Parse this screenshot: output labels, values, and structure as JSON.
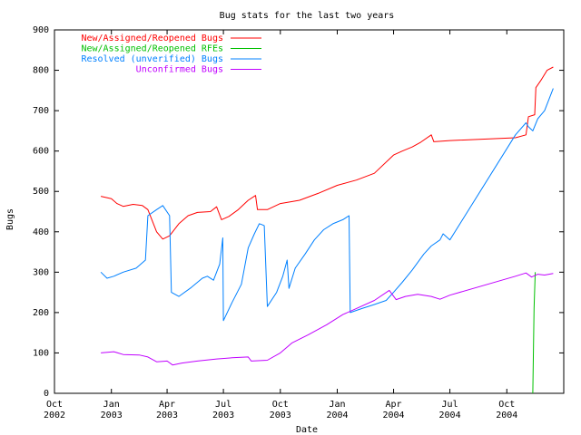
{
  "chart_data": {
    "type": "line",
    "title": "Bug stats for the last two years",
    "xlabel": "Date",
    "ylabel": "Bugs",
    "ylim": [
      0,
      900
    ],
    "xlim": [
      "2002-10-01",
      "2005-01-01"
    ],
    "grid": false,
    "legend_position": "top-left",
    "x_ticks": [
      {
        "date": "2002-10-01",
        "line1": "Oct",
        "line2": "2002"
      },
      {
        "date": "2003-01-01",
        "line1": "Jan",
        "line2": "2003"
      },
      {
        "date": "2003-04-01",
        "line1": "Apr",
        "line2": "2003"
      },
      {
        "date": "2003-07-01",
        "line1": "Jul",
        "line2": "2003"
      },
      {
        "date": "2003-10-01",
        "line1": "Oct",
        "line2": "2003"
      },
      {
        "date": "2004-01-01",
        "line1": "Jan",
        "line2": "2004"
      },
      {
        "date": "2004-04-01",
        "line1": "Apr",
        "line2": "2004"
      },
      {
        "date": "2004-07-01",
        "line1": "Jul",
        "line2": "2004"
      },
      {
        "date": "2004-10-01",
        "line1": "Oct",
        "line2": "2004"
      }
    ],
    "y_ticks": [
      0,
      100,
      200,
      300,
      400,
      500,
      600,
      700,
      800,
      900
    ],
    "series": [
      {
        "name": "New/Assigned/Reopened Bugs",
        "color": "#ff0000",
        "points": [
          [
            "2002-12-15",
            488
          ],
          [
            "2003-01-01",
            482
          ],
          [
            "2003-01-10",
            470
          ],
          [
            "2003-01-20",
            463
          ],
          [
            "2003-02-05",
            468
          ],
          [
            "2003-02-20",
            465
          ],
          [
            "2003-03-01",
            455
          ],
          [
            "2003-03-15",
            400
          ],
          [
            "2003-03-25",
            382
          ],
          [
            "2003-04-05",
            390
          ],
          [
            "2003-04-20",
            420
          ],
          [
            "2003-05-05",
            440
          ],
          [
            "2003-05-20",
            448
          ],
          [
            "2003-06-10",
            450
          ],
          [
            "2003-06-20",
            462
          ],
          [
            "2003-06-28",
            430
          ],
          [
            "2003-07-10",
            438
          ],
          [
            "2003-07-25",
            455
          ],
          [
            "2003-08-10",
            478
          ],
          [
            "2003-08-22",
            490
          ],
          [
            "2003-08-25",
            455
          ],
          [
            "2003-09-10",
            455
          ],
          [
            "2003-10-01",
            470
          ],
          [
            "2003-11-01",
            478
          ],
          [
            "2003-12-01",
            495
          ],
          [
            "2004-01-01",
            515
          ],
          [
            "2004-02-01",
            528
          ],
          [
            "2004-03-01",
            545
          ],
          [
            "2004-04-01",
            590
          ],
          [
            "2004-04-15",
            600
          ],
          [
            "2004-05-01",
            610
          ],
          [
            "2004-05-15",
            622
          ],
          [
            "2004-06-01",
            640
          ],
          [
            "2004-06-05",
            623
          ],
          [
            "2004-07-01",
            626
          ],
          [
            "2004-10-15",
            633
          ],
          [
            "2004-11-01",
            640
          ],
          [
            "2004-11-05",
            685
          ],
          [
            "2004-11-15",
            690
          ],
          [
            "2004-11-17",
            757
          ],
          [
            "2004-11-25",
            775
          ],
          [
            "2004-12-05",
            800
          ],
          [
            "2004-12-15",
            808
          ]
        ]
      },
      {
        "name": "New/Assigned/Reopened RFEs",
        "color": "#00c000",
        "points": [
          [
            "2004-11-12",
            0
          ],
          [
            "2004-11-14",
            210
          ],
          [
            "2004-11-16",
            300
          ]
        ]
      },
      {
        "name": "Resolved (unverified) Bugs",
        "color": "#0080ff",
        "points": [
          [
            "2002-12-15",
            300
          ],
          [
            "2002-12-25",
            285
          ],
          [
            "2003-01-05",
            290
          ],
          [
            "2003-01-20",
            300
          ],
          [
            "2003-02-10",
            310
          ],
          [
            "2003-02-25",
            330
          ],
          [
            "2003-03-01",
            440
          ],
          [
            "2003-03-15",
            455
          ],
          [
            "2003-03-25",
            465
          ],
          [
            "2003-04-05",
            440
          ],
          [
            "2003-04-08",
            250
          ],
          [
            "2003-04-20",
            240
          ],
          [
            "2003-05-10",
            262
          ],
          [
            "2003-05-28",
            285
          ],
          [
            "2003-06-05",
            290
          ],
          [
            "2003-06-15",
            280
          ],
          [
            "2003-06-25",
            320
          ],
          [
            "2003-06-30",
            385
          ],
          [
            "2003-07-01",
            180
          ],
          [
            "2003-07-15",
            225
          ],
          [
            "2003-07-30",
            270
          ],
          [
            "2003-08-10",
            360
          ],
          [
            "2003-08-20",
            395
          ],
          [
            "2003-08-28",
            420
          ],
          [
            "2003-09-01",
            418
          ],
          [
            "2003-09-05",
            415
          ],
          [
            "2003-09-10",
            215
          ],
          [
            "2003-09-25",
            250
          ],
          [
            "2003-10-05",
            290
          ],
          [
            "2003-10-12",
            330
          ],
          [
            "2003-10-15",
            260
          ],
          [
            "2003-10-25",
            310
          ],
          [
            "2003-11-10",
            345
          ],
          [
            "2003-11-25",
            380
          ],
          [
            "2003-12-10",
            405
          ],
          [
            "2003-12-25",
            420
          ],
          [
            "2004-01-10",
            430
          ],
          [
            "2004-01-20",
            440
          ],
          [
            "2004-01-22",
            200
          ],
          [
            "2004-02-10",
            210
          ],
          [
            "2004-03-01",
            220
          ],
          [
            "2004-03-20",
            230
          ],
          [
            "2004-04-01",
            250
          ],
          [
            "2004-04-15",
            275
          ],
          [
            "2004-05-01",
            305
          ],
          [
            "2004-05-20",
            345
          ],
          [
            "2004-06-01",
            365
          ],
          [
            "2004-06-15",
            380
          ],
          [
            "2004-06-20",
            395
          ],
          [
            "2004-07-01",
            380
          ],
          [
            "2004-10-15",
            640
          ],
          [
            "2004-11-01",
            670
          ],
          [
            "2004-11-05",
            660
          ],
          [
            "2004-11-12",
            650
          ],
          [
            "2004-11-20",
            680
          ],
          [
            "2004-12-01",
            700
          ],
          [
            "2004-12-15",
            755
          ]
        ]
      },
      {
        "name": "Unconfirmed Bugs",
        "color": "#c000ff",
        "points": [
          [
            "2002-12-15",
            100
          ],
          [
            "2003-01-05",
            103
          ],
          [
            "2003-01-20",
            96
          ],
          [
            "2003-02-15",
            95
          ],
          [
            "2003-03-01",
            90
          ],
          [
            "2003-03-15",
            78
          ],
          [
            "2003-04-01",
            80
          ],
          [
            "2003-04-10",
            70
          ],
          [
            "2003-04-25",
            75
          ],
          [
            "2003-05-20",
            80
          ],
          [
            "2003-06-20",
            85
          ],
          [
            "2003-07-15",
            88
          ],
          [
            "2003-08-10",
            90
          ],
          [
            "2003-08-15",
            80
          ],
          [
            "2003-09-10",
            82
          ],
          [
            "2003-10-01",
            100
          ],
          [
            "2003-10-20",
            125
          ],
          [
            "2003-11-15",
            145
          ],
          [
            "2003-12-15",
            170
          ],
          [
            "2004-01-10",
            195
          ],
          [
            "2004-02-01",
            210
          ],
          [
            "2004-03-01",
            230
          ],
          [
            "2004-03-25",
            255
          ],
          [
            "2004-04-05",
            232
          ],
          [
            "2004-04-20",
            240
          ],
          [
            "2004-05-10",
            245
          ],
          [
            "2004-06-01",
            240
          ],
          [
            "2004-06-15",
            233
          ],
          [
            "2004-07-01",
            243
          ],
          [
            "2004-10-15",
            290
          ],
          [
            "2004-11-01",
            298
          ],
          [
            "2004-11-10",
            288
          ],
          [
            "2004-11-20",
            295
          ],
          [
            "2004-12-01",
            293
          ],
          [
            "2004-12-15",
            297
          ]
        ]
      }
    ]
  }
}
